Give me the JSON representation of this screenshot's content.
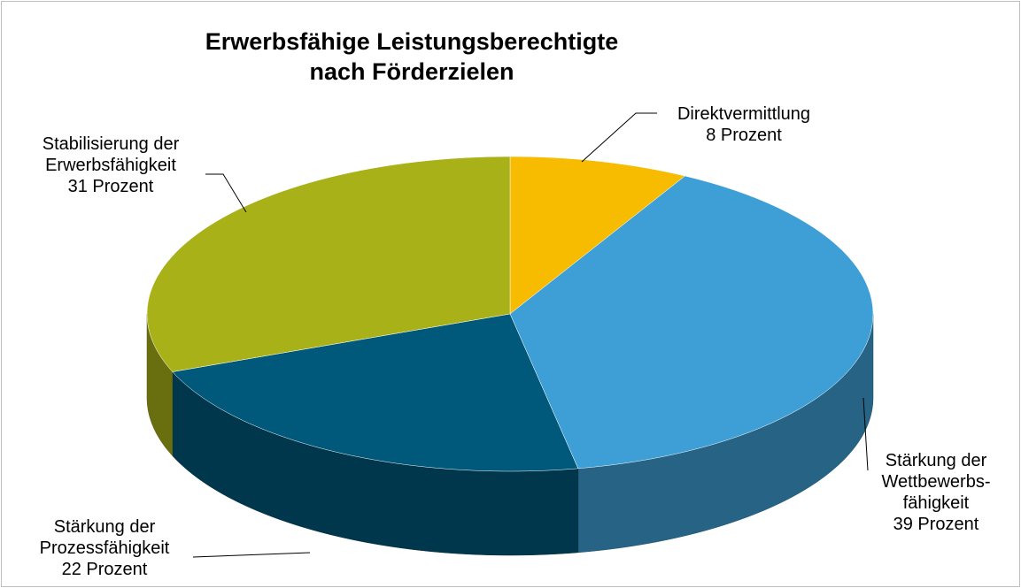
{
  "chart_data": {
    "type": "pie",
    "title": "Erwerbsfähige Leistungsberechtigte\nnach Förderzielen",
    "categories": [
      "Direktvermittlung",
      "Stärkung der\nWettbewerbs-\nfähigkeit",
      "Stärkung der\nProzessfähigkeit",
      "Stabilisierung der\nErwerbsfähigkeit"
    ],
    "values": [
      8,
      39,
      22,
      31
    ],
    "value_labels": [
      "8 Prozent",
      "39 Prozent",
      "22 Prozent",
      "31 Prozent"
    ],
    "colors": [
      "#f7bb00",
      "#3d9fd6",
      "#00587a",
      "#a9b118"
    ]
  }
}
